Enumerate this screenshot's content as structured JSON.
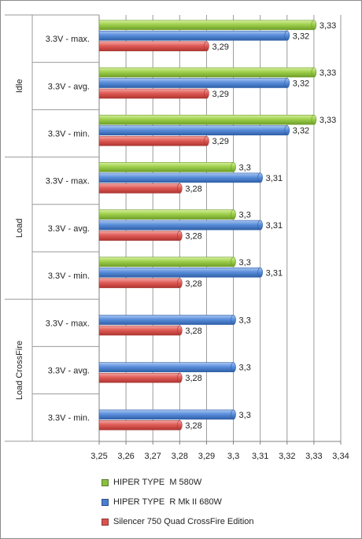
{
  "chart_data": {
    "type": "bar",
    "orientation": "horizontal",
    "groups": [
      {
        "name": "Idle",
        "categories": [
          "3.3V - max.",
          "3.3V - avg.",
          "3.3V - min."
        ]
      },
      {
        "name": "Load",
        "categories": [
          "3.3V - max.",
          "3.3V - avg.",
          "3.3V - min."
        ]
      },
      {
        "name": "Load CrossFire",
        "categories": [
          "3.3V - max.",
          "3.3V - avg.",
          "3.3V - min."
        ]
      }
    ],
    "series": [
      {
        "name": "HIPER TYPE  M 580W",
        "color": "#8bbf3f",
        "values": [
          3.33,
          3.33,
          3.33,
          3.3,
          3.3,
          3.3,
          null,
          null,
          null
        ],
        "labels": [
          "3,33",
          "3,33",
          "3,33",
          "3,3",
          "3,3",
          "3,3",
          "",
          "",
          ""
        ]
      },
      {
        "name": "HIPER TYPE  R Mk II 680W",
        "color": "#4a7fcf",
        "values": [
          3.32,
          3.32,
          3.32,
          3.31,
          3.31,
          3.31,
          3.3,
          3.3,
          3.3
        ],
        "labels": [
          "3,32",
          "3,32",
          "3,32",
          "3,31",
          "3,31",
          "3,31",
          "3,3",
          "3,3",
          "3,3"
        ]
      },
      {
        "name": "Silencer 750 Quad CrossFire Edition",
        "color": "#d9534f",
        "values": [
          3.29,
          3.29,
          3.29,
          3.28,
          3.28,
          3.28,
          3.28,
          3.28,
          3.28
        ],
        "labels": [
          "3,29",
          "3,29",
          "3,29",
          "3,28",
          "3,28",
          "3,28",
          "3,28",
          "3,28",
          "3,28"
        ]
      }
    ],
    "xlim": [
      3.25,
      3.34
    ],
    "xticks": [
      3.25,
      3.26,
      3.27,
      3.28,
      3.29,
      3.3,
      3.31,
      3.32,
      3.33,
      3.34
    ],
    "xtick_labels": [
      "3,25",
      "3,26",
      "3,27",
      "3,28",
      "3,29",
      "3,3",
      "3,31",
      "3,32",
      "3,33",
      "3,34"
    ],
    "grid": "vertical",
    "legend_position": "bottom"
  }
}
